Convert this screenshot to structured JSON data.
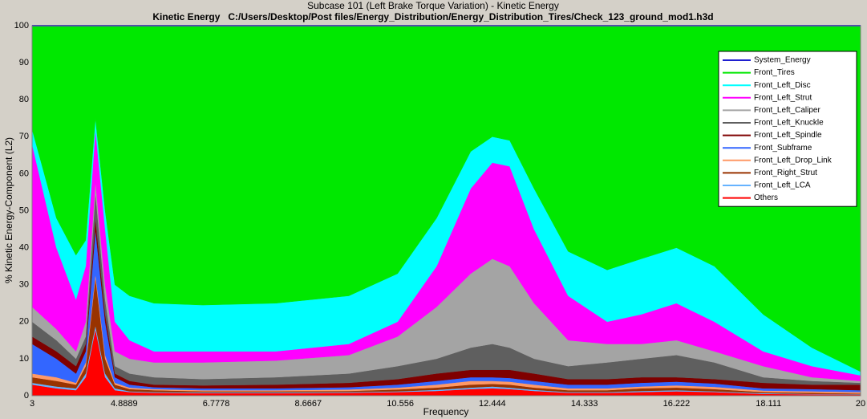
{
  "chart_data": {
    "type": "area",
    "stacked": true,
    "title": "Subcase 101 (Left Brake Torque Variation) - Kinetic Energy",
    "subtitle": "Kinetic Energy   C:/Users/Desktop/Post files/Energy_Distribution/Energy_Distribution_Tires/Check_123_ground_mod1.h3d",
    "x_label": "Frequency",
    "y_label": "% Kinetic Energy-Component (L2)",
    "xlim": [
      3,
      20
    ],
    "xticks": [
      3,
      4.8889,
      6.7778,
      8.6667,
      10.556,
      12.444,
      14.333,
      16.222,
      18.111,
      20
    ],
    "ylim": [
      0,
      100
    ],
    "yticks": [
      0,
      10,
      20,
      30,
      40,
      50,
      60,
      70,
      80,
      90,
      100
    ],
    "grid": true,
    "legend_position": "upper right",
    "x": [
      3,
      3.5,
      3.9,
      4.1,
      4.3,
      4.5,
      4.7,
      5,
      5.5,
      6.5,
      8,
      9.5,
      10.5,
      11.3,
      12,
      12.444,
      12.8,
      13.3,
      14,
      14.8,
      15.5,
      16.222,
      17,
      18,
      19,
      20
    ],
    "series": [
      {
        "name": "System_Energy",
        "color": "#1f1fd0",
        "kind": "line",
        "values": [
          100,
          100,
          100,
          100,
          100,
          100,
          100,
          100,
          100,
          100,
          100,
          100,
          100,
          100,
          100,
          100,
          100,
          100,
          100,
          100,
          100,
          100,
          100,
          100,
          100,
          100
        ]
      },
      {
        "name": "Front_Tires",
        "color": "#00e800",
        "values": [
          28,
          52,
          62,
          58,
          25,
          50,
          70,
          73,
          75,
          75.5,
          75,
          73,
          67,
          52,
          34,
          30,
          31,
          44,
          61,
          66,
          63,
          60,
          65,
          78,
          87,
          93.5
        ]
      },
      {
        "name": "Front_Left_Disc",
        "color": "#00ffff",
        "values": [
          4,
          8,
          12,
          7,
          3,
          5,
          10,
          12,
          13,
          12.5,
          13,
          13,
          13,
          13,
          10,
          7,
          7,
          11,
          12,
          14,
          15,
          15,
          15,
          10,
          5,
          1
        ]
      },
      {
        "name": "Front_Left_Strut",
        "color": "#ff00ff",
        "values": [
          44,
          22,
          14,
          15,
          14,
          15,
          8,
          5,
          3,
          3,
          2.5,
          3,
          4,
          11,
          23,
          26,
          27,
          20,
          12,
          6,
          8,
          10,
          8,
          4,
          3,
          1.5
        ]
      },
      {
        "name": "Front_Left_Caliper",
        "color": "#a4a4a4",
        "values": [
          4,
          3,
          2,
          4,
          3,
          4,
          4,
          4,
          4,
          4.5,
          4.5,
          5,
          8,
          14,
          20,
          23,
          22,
          15,
          7,
          5,
          4,
          4,
          3,
          3,
          1,
          0.5
        ]
      },
      {
        "name": "Front_Left_Knuckle",
        "color": "#5f5f5f",
        "values": [
          4,
          3,
          2,
          2,
          7,
          4,
          2,
          2,
          2,
          1.7,
          2,
          2.5,
          3.5,
          4,
          6,
          7,
          6,
          4,
          3.5,
          4.5,
          5,
          6,
          4.5,
          1.5,
          1,
          0.5
        ]
      },
      {
        "name": "Front_Left_Spindle",
        "color": "#7f0000",
        "values": [
          2,
          2,
          2,
          2,
          3,
          2,
          1,
          1,
          0.7,
          0.8,
          1,
          1.2,
          1.5,
          2,
          2,
          2,
          2.2,
          2,
          1.5,
          1.5,
          1.5,
          1.2,
          1.2,
          1.5,
          1.2,
          1.5
        ]
      },
      {
        "name": "Front_Subframe",
        "color": "#3366ff",
        "values": [
          8,
          5,
          2.5,
          3,
          12,
          9,
          1.5,
          0.8,
          0.5,
          0.5,
          0.5,
          0.6,
          0.8,
          1,
          1,
          1,
          1,
          1,
          1,
          1,
          1,
          1,
          0.9,
          0.6,
          0.6,
          0.5
        ]
      },
      {
        "name": "Front_Left_Drop_Link",
        "color": "#ff9966",
        "values": [
          1,
          1,
          0.5,
          1,
          1,
          1,
          0.5,
          0.4,
          0.3,
          0.3,
          0.3,
          0.4,
          0.5,
          0.8,
          1,
          0.8,
          0.8,
          0.8,
          0.5,
          0.5,
          0.5,
          0.6,
          0.6,
          0.4,
          0.4,
          0.4
        ]
      },
      {
        "name": "Front_Right_Strut",
        "color": "#993300",
        "values": [
          1.5,
          1.5,
          1,
          2,
          13,
          4,
          1,
          0.6,
          0.5,
          0.3,
          0.3,
          0.3,
          0.5,
          0.6,
          0.8,
          0.7,
          0.8,
          0.6,
          0.5,
          0.5,
          0.7,
          0.7,
          0.6,
          0.3,
          0.3,
          0.2
        ]
      },
      {
        "name": "Front_Left_LCA",
        "color": "#66b3ff",
        "values": [
          0.5,
          0.5,
          0.5,
          1,
          1,
          1,
          0.5,
          0.2,
          0.2,
          0.2,
          0.2,
          0.2,
          0.2,
          0.3,
          0.4,
          0.5,
          0.4,
          0.3,
          0.2,
          0.2,
          0.3,
          0.3,
          0.2,
          0.2,
          0.1,
          0.1
        ]
      },
      {
        "name": "Others",
        "color": "#ff0000",
        "values": [
          3,
          2,
          1.5,
          5,
          18,
          5,
          1.5,
          1,
          0.8,
          0.7,
          0.7,
          0.8,
          1,
          1.3,
          1.8,
          2,
          1.8,
          1.3,
          0.8,
          0.8,
          1,
          1.2,
          1,
          0.5,
          0.4,
          0.3
        ]
      }
    ]
  }
}
